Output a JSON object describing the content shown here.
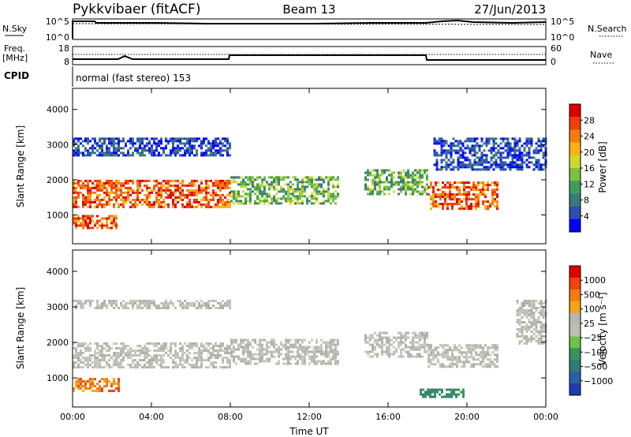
{
  "header": {
    "station": "Pykkvibaer (fitACF)",
    "beam": "Beam 13",
    "date": "27/Jun/2013"
  },
  "info_panel": {
    "nsky_label": "N.Sky",
    "nsky_ticks": [
      "10^5",
      "10^0"
    ],
    "nsearch_label": "N.Search",
    "nsearch_ticks": [
      "10^5",
      "10^0"
    ],
    "freq_label": "Freq.",
    "freq_unit": "[MHz]",
    "freq_ticks": [
      "18",
      "8"
    ],
    "nave_label": "Nave",
    "nave_ticks": [
      "60",
      "0"
    ],
    "cpid_label": "CPID",
    "cpid_text": "normal (fast stereo) 153"
  },
  "chart_data": [
    {
      "type": "heatmap",
      "quantity": "Power",
      "ylabel": "Slant Range [km]",
      "yticks": [
        1000,
        2000,
        3000,
        4000
      ],
      "ylim": [
        180,
        4600
      ],
      "xlim": [
        0,
        24
      ],
      "colorbar": {
        "label": "Power [dB]",
        "ticks": [
          "28",
          "24",
          "20",
          "16",
          "12",
          "8",
          "4"
        ],
        "colors": [
          "#0000ff",
          "#2b4fb0",
          "#3a7a78",
          "#3f9d5a",
          "#7cc142",
          "#d0d82c",
          "#f6b313",
          "#f47b10",
          "#ef3e0e",
          "#e00000"
        ]
      },
      "echo_bands": [
        {
          "t0": 0.0,
          "t1": 8.0,
          "r0": 1200,
          "r1": 2000,
          "level": "high"
        },
        {
          "t0": 0.0,
          "t1": 2.2,
          "r0": 650,
          "r1": 1000,
          "level": "high"
        },
        {
          "t0": 8.0,
          "t1": 13.5,
          "r0": 1350,
          "r1": 2100,
          "level": "medium"
        },
        {
          "t0": 14.8,
          "t1": 18.0,
          "r0": 1600,
          "r1": 2300,
          "level": "medium"
        },
        {
          "t0": 18.0,
          "t1": 21.5,
          "r0": 1200,
          "r1": 1950,
          "level": "high"
        },
        {
          "t0": 0.0,
          "t1": 8.0,
          "r0": 2700,
          "r1": 3200,
          "level": "low"
        },
        {
          "t0": 18.3,
          "t1": 24.0,
          "r0": 2300,
          "r1": 3200,
          "level": "low"
        }
      ]
    },
    {
      "type": "heatmap",
      "quantity": "Velocity",
      "xlabel": "Time UT",
      "ylabel": "Slant Range [km]",
      "xticks": [
        "00:00",
        "04:00",
        "08:00",
        "12:00",
        "16:00",
        "20:00",
        "00:00"
      ],
      "xtick_values": [
        0,
        4,
        8,
        12,
        16,
        20,
        24
      ],
      "yticks": [
        1000,
        2000,
        3000,
        4000
      ],
      "ylim": [
        180,
        4600
      ],
      "xlim": [
        0,
        24
      ],
      "colorbar": {
        "label": "Velocity [m s⁻¹]",
        "ticks": [
          "1000",
          "500",
          "100",
          "25",
          "−25",
          "−100",
          "−500",
          "−1000"
        ],
        "colors": [
          "#1f3bb0",
          "#2a5fa6",
          "#2f7a7a",
          "#3c8f5e",
          "#71c14a",
          "#bdbdb4",
          "#b7b7ad",
          "#f2a516",
          "#f27c14",
          "#f0410f",
          "#e00000"
        ]
      },
      "echo_bands": [
        {
          "t0": 0.0,
          "t1": 8.0,
          "r0": 1300,
          "r1": 2000,
          "level": "grey"
        },
        {
          "t0": 0.0,
          "t1": 2.3,
          "r0": 650,
          "r1": 1000,
          "level": "orange"
        },
        {
          "t0": 8.0,
          "t1": 13.5,
          "r0": 1400,
          "r1": 2100,
          "level": "grey"
        },
        {
          "t0": 14.8,
          "t1": 18.0,
          "r0": 1600,
          "r1": 2300,
          "level": "grey"
        },
        {
          "t0": 18.0,
          "t1": 21.5,
          "r0": 1300,
          "r1": 1950,
          "level": "grey"
        },
        {
          "t0": 17.6,
          "t1": 19.8,
          "r0": 470,
          "r1": 700,
          "level": "green"
        },
        {
          "t0": 0.0,
          "t1": 8.0,
          "r0": 2950,
          "r1": 3200,
          "level": "grey"
        },
        {
          "t0": 22.5,
          "t1": 24.0,
          "r0": 2000,
          "r1": 3200,
          "level": "grey"
        }
      ]
    }
  ]
}
